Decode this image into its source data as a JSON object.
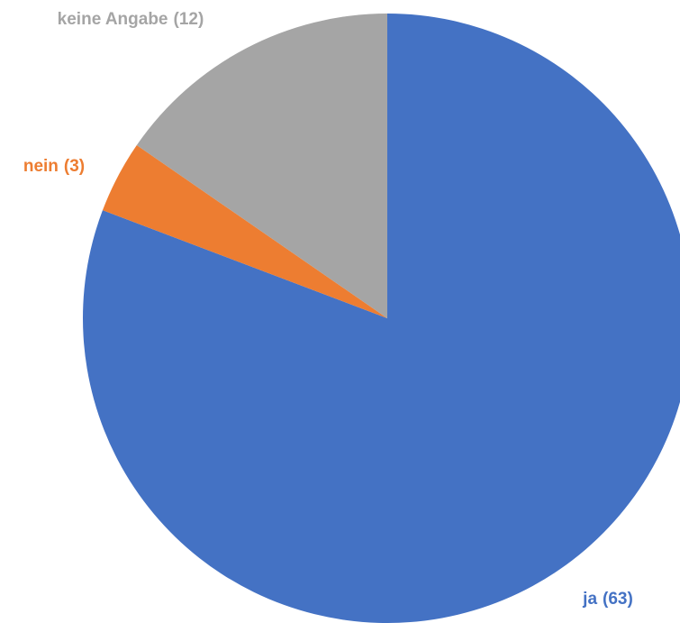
{
  "chart_data": {
    "type": "pie",
    "categories": [
      "ja",
      "nein",
      "keine Angabe"
    ],
    "values": [
      63,
      3,
      12
    ],
    "value_labels": [
      "(63)",
      "(3)",
      "(12)"
    ],
    "colors": [
      "#4472c4",
      "#ed7d31",
      "#a5a5a5"
    ]
  }
}
